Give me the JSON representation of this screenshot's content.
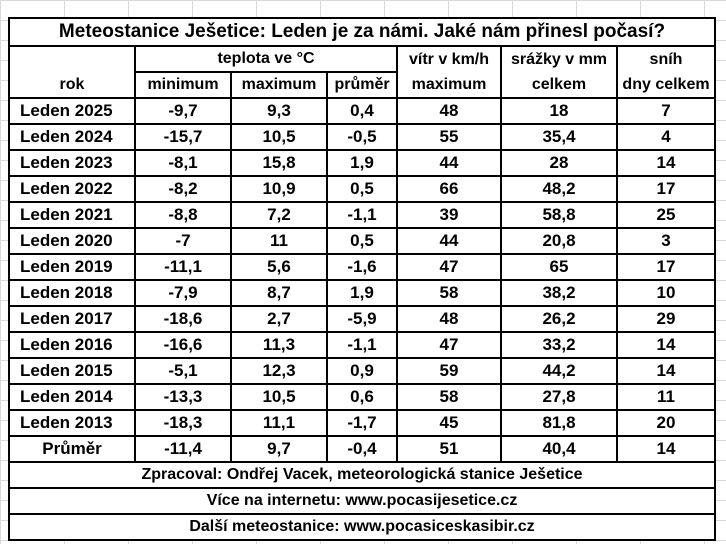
{
  "title": "Meteostanice Ješetice: Leden je za námi. Jaké nám přinesl počasí?",
  "header": {
    "rok": "rok",
    "teplota_group": "teplota ve °C",
    "vitr_group": "vítr v km/h",
    "srazky_group": "srážky v mm",
    "snih_group": "sníh",
    "minimum": "minimum",
    "maximum": "maximum",
    "prumer": "průměr",
    "vitr_maximum": "maximum",
    "srazky_celkem": "celkem",
    "snih_dny": "dny celkem"
  },
  "rows": [
    {
      "rok": "Leden 2025",
      "min": "-9,7",
      "max": "9,3",
      "avg": "0,4",
      "wind": "48",
      "rain": "18",
      "snow": "7"
    },
    {
      "rok": "Leden 2024",
      "min": "-15,7",
      "max": "10,5",
      "avg": "-0,5",
      "wind": "55",
      "rain": "35,4",
      "snow": "4"
    },
    {
      "rok": "Leden 2023",
      "min": "-8,1",
      "max": "15,8",
      "avg": "1,9",
      "wind": "44",
      "rain": "28",
      "snow": "14"
    },
    {
      "rok": "Leden 2022",
      "min": "-8,2",
      "max": "10,9",
      "avg": "0,5",
      "wind": "66",
      "rain": "48,2",
      "snow": "17"
    },
    {
      "rok": "Leden 2021",
      "min": "-8,8",
      "max": "7,2",
      "avg": "-1,1",
      "wind": "39",
      "rain": "58,8",
      "snow": "25"
    },
    {
      "rok": "Leden 2020",
      "min": "-7",
      "max": "11",
      "avg": "0,5",
      "wind": "44",
      "rain": "20,8",
      "snow": "3"
    },
    {
      "rok": "Leden 2019",
      "min": "-11,1",
      "max": "5,6",
      "avg": "-1,6",
      "wind": "47",
      "rain": "65",
      "snow": "17"
    },
    {
      "rok": "Leden 2018",
      "min": "-7,9",
      "max": "8,7",
      "avg": "1,9",
      "wind": "58",
      "rain": "38,2",
      "snow": "10"
    },
    {
      "rok": "Leden 2017",
      "min": "-18,6",
      "max": "2,7",
      "avg": "-5,9",
      "wind": "48",
      "rain": "26,2",
      "snow": "29"
    },
    {
      "rok": "Leden 2016",
      "min": "-16,6",
      "max": "11,3",
      "avg": "-1,1",
      "wind": "47",
      "rain": "33,2",
      "snow": "14"
    },
    {
      "rok": "Leden 2015",
      "min": "-5,1",
      "max": "12,3",
      "avg": "0,9",
      "wind": "59",
      "rain": "44,2",
      "snow": "14"
    },
    {
      "rok": "Leden 2014",
      "min": "-13,3",
      "max": "10,5",
      "avg": "0,6",
      "wind": "58",
      "rain": "27,8",
      "snow": "11"
    },
    {
      "rok": "Leden 2013",
      "min": "-18,3",
      "max": "11,1",
      "avg": "-1,7",
      "wind": "45",
      "rain": "81,8",
      "snow": "20"
    }
  ],
  "average": {
    "rok": "Průměr",
    "min": "-11,4",
    "max": "9,7",
    "avg": "-0,4",
    "wind": "51",
    "rain": "40,4",
    "snow": "14"
  },
  "footer": {
    "processed_by": "Zpracoval: Ondřej Vacek, meteorologická stanice Ješetice",
    "more_online": "Více na internetu: www.pocasijesetice.cz",
    "other_station": "Další meteostanice: www.pocasiceskasibir.cz"
  }
}
